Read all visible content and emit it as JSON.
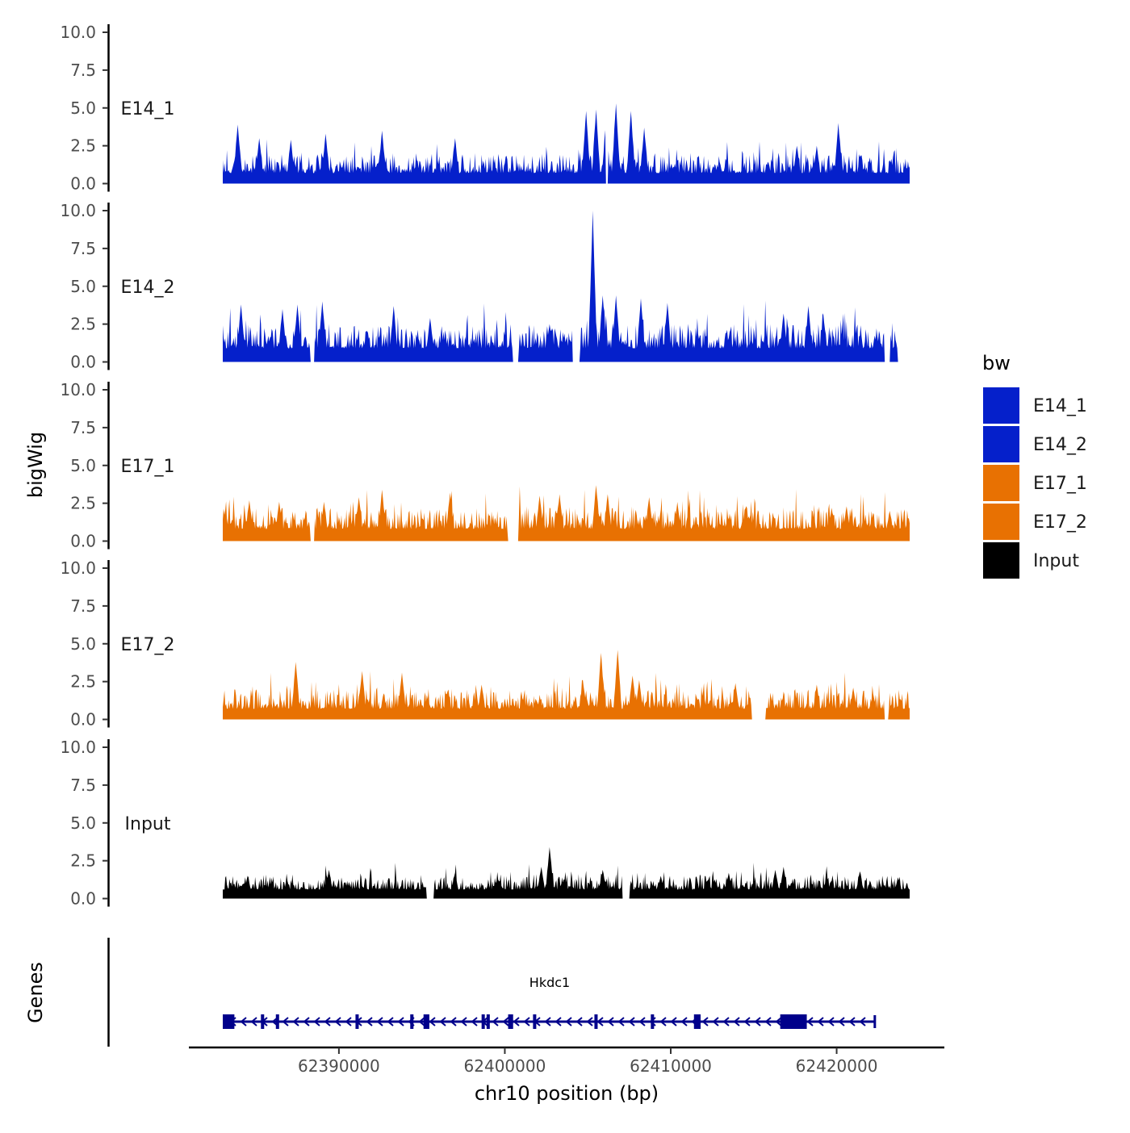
{
  "chart_data": {
    "type": "area",
    "ylabel": "bigWig",
    "genes_label": "Genes",
    "xlabel": "chr10 position (bp)",
    "xlim": [
      62382000,
      62427000
    ],
    "x_ticks": [
      62390000,
      62400000,
      62410000,
      62420000
    ],
    "x_tick_labels": [
      "62390000",
      "62400000",
      "62410000",
      "62420000"
    ],
    "data_range": [
      62383000,
      62424400
    ],
    "ylim": [
      0,
      10
    ],
    "y_ticks": [
      0,
      2.5,
      5,
      7.5,
      10
    ],
    "y_tick_labels": [
      "0.0",
      "2.5",
      "5.0",
      "7.5",
      "10.0"
    ],
    "legend_title": "bw",
    "legend_position": "right",
    "tracks": [
      {
        "name": "E14_1",
        "color": "#0520CB",
        "base": 0.7,
        "amp": 1.2,
        "seed": 11,
        "gaps": [
          [
            62406100,
            62406200
          ]
        ],
        "peaks": [
          [
            62383900,
            3.9
          ],
          [
            62385200,
            3.0
          ],
          [
            62387100,
            2.9
          ],
          [
            62389200,
            3.3
          ],
          [
            62392600,
            3.5
          ],
          [
            62397000,
            3.0
          ],
          [
            62404900,
            4.8
          ],
          [
            62405500,
            4.9
          ],
          [
            62406100,
            4.3
          ],
          [
            62406700,
            5.3
          ],
          [
            62407600,
            4.8
          ],
          [
            62408400,
            3.7
          ],
          [
            62417600,
            2.5
          ],
          [
            62418800,
            2.5
          ],
          [
            62420100,
            4.0
          ]
        ]
      },
      {
        "name": "E14_2",
        "color": "#0520CB",
        "base": 0.9,
        "amp": 1.6,
        "seed": 23,
        "gaps": [
          [
            62388300,
            62388500
          ],
          [
            62400500,
            62400800
          ],
          [
            62404100,
            62404500
          ],
          [
            62422900,
            62423200
          ],
          [
            62423700,
            62424400
          ]
        ],
        "peaks": [
          [
            62384100,
            3.8
          ],
          [
            62386600,
            3.5
          ],
          [
            62387500,
            3.8
          ],
          [
            62389000,
            4.0
          ],
          [
            62393300,
            3.7
          ],
          [
            62395500,
            2.9
          ],
          [
            62402700,
            2.5
          ],
          [
            62405300,
            10.0
          ],
          [
            62405900,
            4.4
          ],
          [
            62406700,
            4.4
          ],
          [
            62408200,
            4.2
          ],
          [
            62409800,
            3.9
          ],
          [
            62416800,
            3.2
          ],
          [
            62418300,
            3.7
          ],
          [
            62419200,
            3.1
          ]
        ]
      },
      {
        "name": "E17_1",
        "color": "#E87102",
        "base": 0.8,
        "amp": 1.4,
        "seed": 37,
        "gaps": [
          [
            62388300,
            62388500
          ],
          [
            62400200,
            62400800
          ]
        ],
        "peaks": [
          [
            62384600,
            2.7
          ],
          [
            62386400,
            2.6
          ],
          [
            62389100,
            2.6
          ],
          [
            62391200,
            2.9
          ],
          [
            62392600,
            3.4
          ],
          [
            62396700,
            3.2
          ],
          [
            62402100,
            3.0
          ],
          [
            62403300,
            3.1
          ],
          [
            62405500,
            3.7
          ],
          [
            62406200,
            3.1
          ],
          [
            62408700,
            2.9
          ],
          [
            62410400,
            2.5
          ],
          [
            62419700,
            2.2
          ],
          [
            62420600,
            2.3
          ],
          [
            62423200,
            2.0
          ]
        ]
      },
      {
        "name": "E17_2",
        "color": "#E87102",
        "base": 0.7,
        "amp": 1.3,
        "seed": 53,
        "gaps": [
          [
            62414900,
            62415700
          ],
          [
            62422900,
            62423100
          ]
        ],
        "peaks": [
          [
            62387400,
            3.8
          ],
          [
            62391400,
            3.2
          ],
          [
            62393800,
            3.1
          ],
          [
            62398600,
            2.3
          ],
          [
            62404700,
            2.6
          ],
          [
            62405800,
            4.4
          ],
          [
            62406800,
            4.6
          ],
          [
            62407700,
            2.9
          ],
          [
            62408100,
            2.6
          ],
          [
            62413900,
            2.4
          ],
          [
            62418800,
            2.3
          ],
          [
            62421000,
            2.1
          ],
          [
            62422200,
            1.7
          ]
        ]
      },
      {
        "name": "Input",
        "color": "#000000",
        "base": 0.6,
        "amp": 0.9,
        "seed": 71,
        "gaps": [
          [
            62395300,
            62395700
          ],
          [
            62407100,
            62407500
          ]
        ],
        "peaks": [
          [
            62384500,
            1.5
          ],
          [
            62389400,
            1.9
          ],
          [
            62397000,
            1.7
          ],
          [
            62402200,
            2.1
          ],
          [
            62402700,
            3.4
          ],
          [
            62405900,
            1.9
          ],
          [
            62409400,
            1.5
          ],
          [
            62413500,
            1.7
          ],
          [
            62416300,
            1.9
          ],
          [
            62416800,
            2.1
          ],
          [
            62419400,
            1.5
          ],
          [
            62421400,
            1.8
          ],
          [
            62423700,
            1.4
          ]
        ]
      }
    ],
    "legend": [
      {
        "label": "E14_1",
        "color": "#0520CB"
      },
      {
        "label": "E14_2",
        "color": "#0520CB"
      },
      {
        "label": "E17_1",
        "color": "#E87102"
      },
      {
        "label": "E17_2",
        "color": "#E87102"
      },
      {
        "label": "Input",
        "color": "#000000"
      }
    ],
    "gene": {
      "name": "Hkdc1",
      "start": 62383000,
      "end": 62422300,
      "strand": "-",
      "color": "#00008B",
      "exons": [
        [
          62383000,
          62383700
        ],
        [
          62385300,
          62385450
        ],
        [
          62386200,
          62386300
        ],
        [
          62391000,
          62391100
        ],
        [
          62394300,
          62394400
        ],
        [
          62395100,
          62395450
        ],
        [
          62398600,
          62398700
        ],
        [
          62398900,
          62399000
        ],
        [
          62400200,
          62400500
        ],
        [
          62401700,
          62401850
        ],
        [
          62405400,
          62405550
        ],
        [
          62408800,
          62408900
        ],
        [
          62411400,
          62411800
        ],
        [
          62416600,
          62418200
        ]
      ]
    }
  }
}
